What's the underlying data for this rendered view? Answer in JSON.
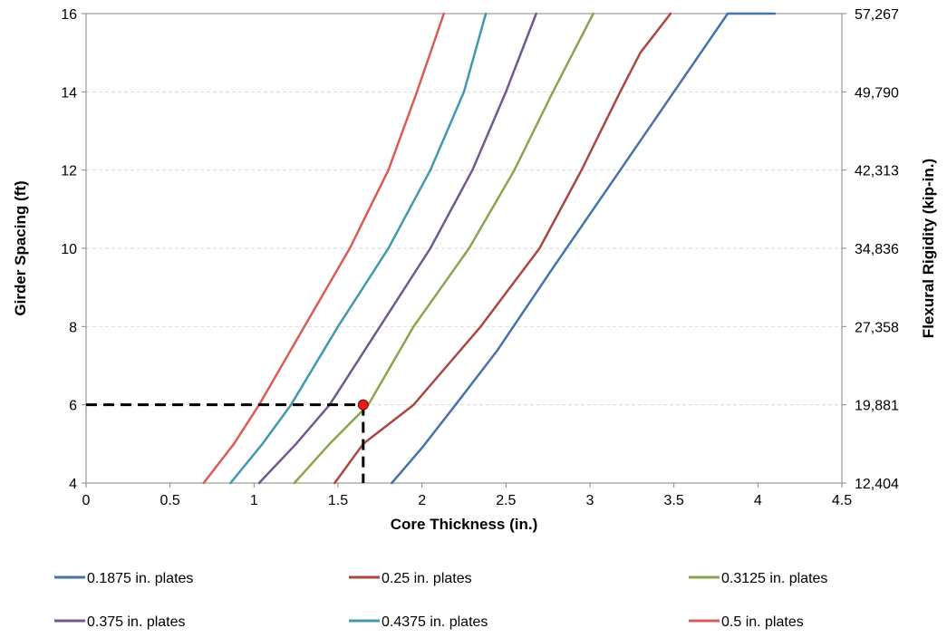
{
  "chart_data": {
    "type": "line",
    "title": "",
    "xlabel": "Core Thickness (in.)",
    "ylabel": "Girder Spacing (ft)",
    "y2label": "Flexural Rigidity  (kip-in.)",
    "xlim": [
      0,
      4.5
    ],
    "ylim": [
      4,
      16
    ],
    "x_ticks": [
      0,
      0.5,
      1,
      1.5,
      2,
      2.5,
      3,
      3.5,
      4,
      4.5
    ],
    "x_tick_labels": [
      "0",
      "0.5",
      "1",
      "1.5",
      "2",
      "2.5",
      "3",
      "3.5",
      "4",
      "4.5"
    ],
    "y_ticks": [
      4,
      6,
      8,
      10,
      12,
      14,
      16
    ],
    "y_tick_labels": [
      "4",
      "6",
      "8",
      "10",
      "12",
      "14",
      "16"
    ],
    "y2_ticks": [
      4,
      6,
      8,
      10,
      12,
      14,
      16
    ],
    "y2_tick_labels": [
      "12,404",
      "19,881",
      "27,358",
      "34,836",
      "42,313",
      "49,790",
      "57,267"
    ],
    "grid": "horizontal dashed",
    "legend_position": "bottom",
    "series": [
      {
        "name": "0.1875 in. plates",
        "color": "#4572A7",
        "points": [
          [
            1.82,
            4
          ],
          [
            2.0,
            4.9
          ],
          [
            2.2,
            6.0
          ],
          [
            2.45,
            7.4
          ],
          [
            2.78,
            9.5
          ],
          [
            3.18,
            12.0
          ],
          [
            3.5,
            14.0
          ],
          [
            3.82,
            16.0
          ],
          [
            4.1,
            16.0
          ]
        ]
      },
      {
        "name": "0.25 in. plates",
        "color": "#AA4643",
        "points": [
          [
            1.48,
            4
          ],
          [
            1.65,
            5.0
          ],
          [
            1.95,
            6.0
          ],
          [
            2.35,
            8.0
          ],
          [
            2.7,
            10.0
          ],
          [
            2.95,
            12.0
          ],
          [
            3.18,
            14.0
          ],
          [
            3.3,
            15.0
          ],
          [
            3.48,
            16.0
          ]
        ]
      },
      {
        "name": "0.3125 in. plates",
        "color": "#89A54E",
        "points": [
          [
            1.24,
            4
          ],
          [
            1.45,
            5.0
          ],
          [
            1.68,
            6.0
          ],
          [
            1.95,
            8.0
          ],
          [
            2.28,
            10.0
          ],
          [
            2.55,
            12.0
          ],
          [
            2.78,
            14.0
          ],
          [
            3.02,
            16.0
          ]
        ]
      },
      {
        "name": "0.375 in. plates",
        "color": "#71588F",
        "points": [
          [
            1.03,
            4
          ],
          [
            1.25,
            5.0
          ],
          [
            1.45,
            6.0
          ],
          [
            1.75,
            8.0
          ],
          [
            2.05,
            10.0
          ],
          [
            2.3,
            12.0
          ],
          [
            2.5,
            14.0
          ],
          [
            2.68,
            16.0
          ]
        ]
      },
      {
        "name": "0.4375 in. plates",
        "color": "#4198AF",
        "points": [
          [
            0.86,
            4
          ],
          [
            1.05,
            5.0
          ],
          [
            1.22,
            6.0
          ],
          [
            1.5,
            8.0
          ],
          [
            1.8,
            10.0
          ],
          [
            2.05,
            12.0
          ],
          [
            2.25,
            14.0
          ],
          [
            2.38,
            16.0
          ]
        ]
      },
      {
        "name": "0.5 in. plates",
        "color": "#DB5B55",
        "points": [
          [
            0.7,
            4
          ],
          [
            0.88,
            5.0
          ],
          [
            1.03,
            6.0
          ],
          [
            1.3,
            8.0
          ],
          [
            1.57,
            10.0
          ],
          [
            1.8,
            12.0
          ],
          [
            1.97,
            14.0
          ],
          [
            2.13,
            16.0
          ]
        ]
      }
    ],
    "annotations": {
      "marker": {
        "x": 1.65,
        "y": 6,
        "color": "#E0201B"
      },
      "guide_color": "#000000"
    }
  }
}
